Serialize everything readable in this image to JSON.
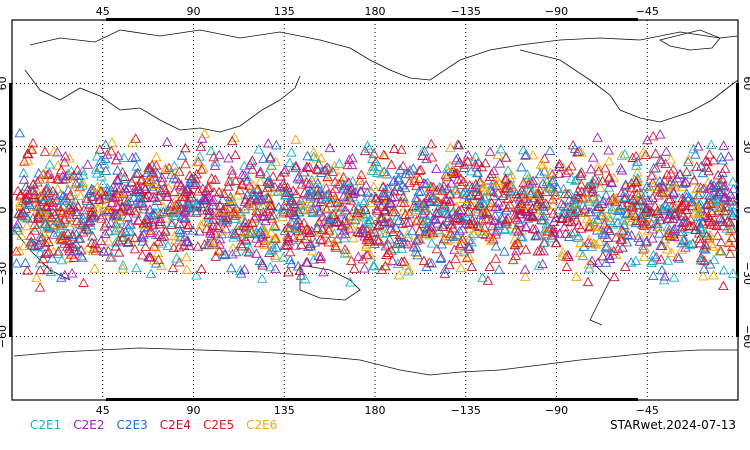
{
  "map": {
    "top_lon_ticks": [
      "45",
      "90",
      "135",
      "180",
      "−135",
      "−90",
      "−45"
    ],
    "bottom_lon_ticks": [
      "45",
      "90",
      "135",
      "180",
      "−135",
      "−90",
      "−45"
    ],
    "left_lat_ticks": [
      "60",
      "30",
      "0",
      "−30",
      "−60"
    ],
    "right_lat_ticks": [
      "60",
      "30",
      "0",
      "−30",
      "−60"
    ],
    "marker": "triangle-outline-icon"
  },
  "legend": [
    {
      "label": "C2E1",
      "color": "#19b3cf"
    },
    {
      "label": "C2E2",
      "color": "#a11fb8"
    },
    {
      "label": "C2E3",
      "color": "#1f6fd6"
    },
    {
      "label": "C2E4",
      "color": "#c8102e"
    },
    {
      "label": "C2E5",
      "color": "#e02020"
    },
    {
      "label": "C2E6",
      "color": "#f2a900"
    }
  ],
  "stamp": "STARwet.2024-07-13",
  "chart_data": {
    "type": "scatter",
    "x_axis": "longitude",
    "y_axis": "latitude",
    "xlim": [
      0,
      360
    ],
    "ylim": [
      -90,
      90
    ],
    "lat_extent_of_markers": [
      -40,
      40
    ],
    "grid": true
  }
}
